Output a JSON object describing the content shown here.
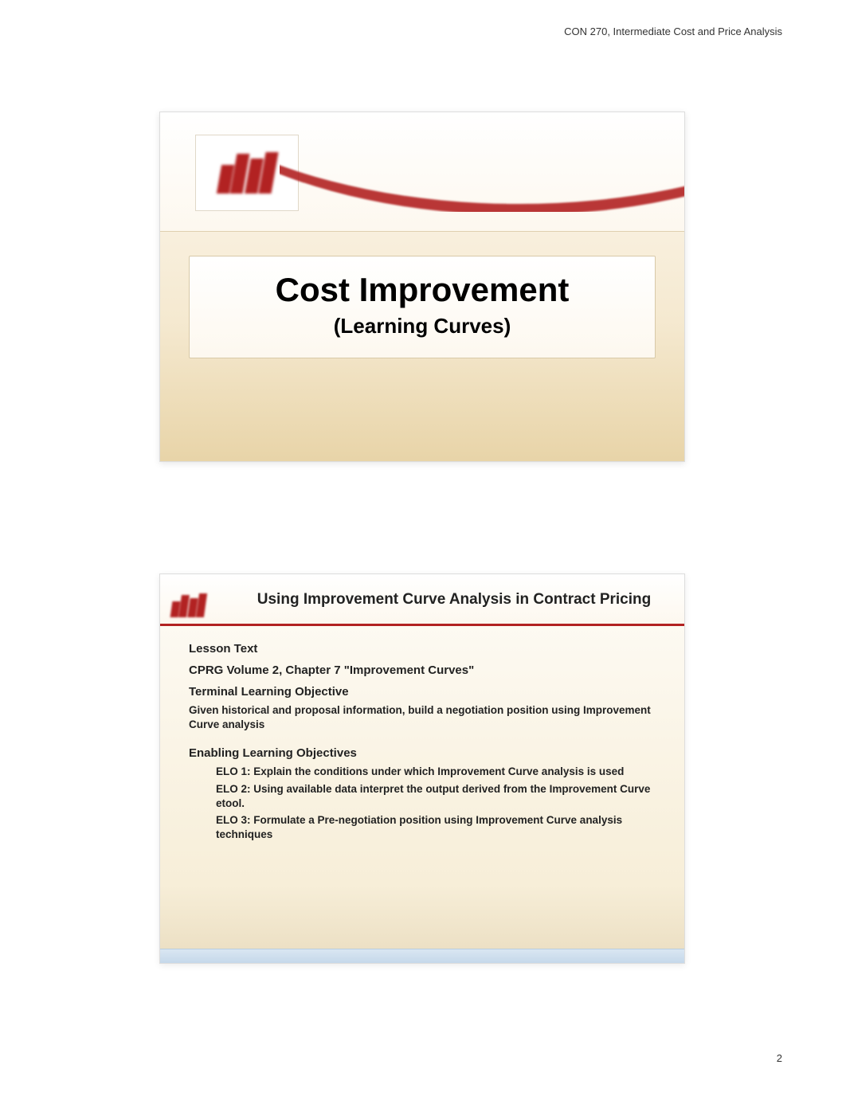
{
  "page": {
    "header_text": "CON 270, Intermediate Cost and Price Analysis",
    "page_number": "2",
    "background_color": "#ffffff",
    "header_fontsize": 13,
    "header_color": "#333333"
  },
  "slide1": {
    "background_gradient": [
      "#fdf8ef",
      "#f5e9d0",
      "#e8d4a8"
    ],
    "logo_color": "#b22222",
    "swoosh_color": "#b22222",
    "title": "Cost Improvement",
    "subtitle": "(Learning Curves)",
    "title_fontsize": 42,
    "subtitle_fontsize": 26,
    "title_color": "#000000",
    "title_box_border": "#d8c9a8"
  },
  "slide2": {
    "background_gradient": [
      "#fefcf7",
      "#f7eed8",
      "#eaddc0"
    ],
    "header_border_color": "#b22222",
    "logo_color": "#b22222",
    "title": "Using Improvement Curve Analysis in Contract Pricing",
    "title_fontsize": 19,
    "lesson_text_label": "Lesson Text",
    "cprg_line": "CPRG Volume 2, Chapter 7 \"Improvement Curves\"",
    "tlo_label": "Terminal Learning Objective",
    "tlo_text": "Given historical and proposal information, build a negotiation position using Improvement Curve analysis",
    "elo_label": "Enabling Learning Objectives",
    "elos": [
      "ELO 1: Explain the conditions under which Improvement Curve analysis is used",
      "ELO 2: Using available data interpret the output derived from the Improvement Curve etool.",
      "ELO 3: Formulate a Pre-negotiation position using Improvement Curve analysis techniques"
    ],
    "body_fontsize": 13.5,
    "section_fontsize": 15,
    "text_color": "#222222",
    "footer_gradient": [
      "#d9e6f2",
      "#c5d8ea"
    ]
  }
}
